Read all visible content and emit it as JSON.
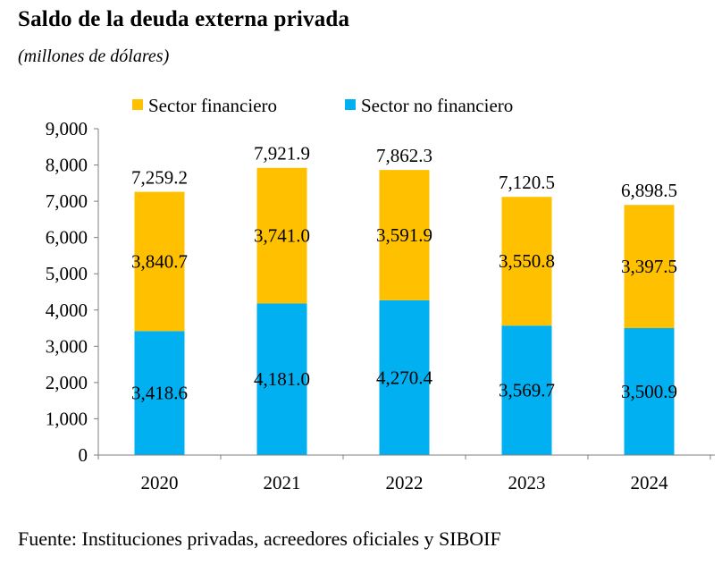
{
  "title": "Saldo de la deuda externa privada",
  "subtitle": "(millones de dólares)",
  "source": "Fuente: Instituciones privadas, acreedores oficiales y SIBOIF",
  "colors": {
    "financiero": "#FFC000",
    "no_financiero": "#00B0F0"
  },
  "chart_data": {
    "type": "bar",
    "stacked": true,
    "categories": [
      "2020",
      "2021",
      "2022",
      "2023",
      "2024"
    ],
    "series": [
      {
        "name": "Sector no financiero",
        "values": [
          3418.6,
          4181.0,
          4270.4,
          3569.7,
          3500.9
        ],
        "labels": [
          "3,418.6",
          "4,181.0",
          "4,270.4",
          "3,569.7",
          "3,500.9"
        ]
      },
      {
        "name": "Sector financiero",
        "values": [
          3840.7,
          3741.0,
          3591.9,
          3550.8,
          3397.5
        ],
        "labels": [
          "3,840.7",
          "3,741.0",
          "3,591.9",
          "3,550.8",
          "3,397.5"
        ]
      }
    ],
    "totals": [
      "7,259.2",
      "7,921.9",
      "7,862.3",
      "7,120.5",
      "6,898.5"
    ],
    "legend_order": [
      "Sector financiero",
      "Sector no financiero"
    ],
    "legend_position": "top",
    "yticks": [
      "0",
      "1,000",
      "2,000",
      "3,000",
      "4,000",
      "5,000",
      "6,000",
      "7,000",
      "8,000",
      "9,000"
    ],
    "ylim": [
      0,
      9000
    ],
    "grid": false
  }
}
